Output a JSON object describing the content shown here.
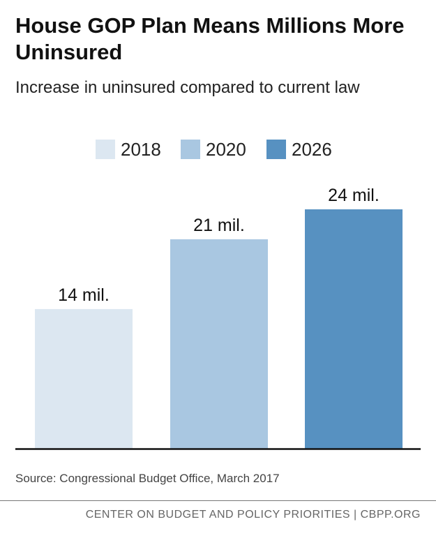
{
  "chart_data": {
    "type": "bar",
    "title": "House GOP Plan Means Millions More Uninsured",
    "subtitle": "Increase in uninsured compared to current law",
    "categories": [
      "2018",
      "2020",
      "2026"
    ],
    "values": [
      14,
      21,
      24
    ],
    "data_labels": [
      "14 mil.",
      "21 mil.",
      "24 mil."
    ],
    "units": "millions",
    "ylim": [
      0,
      24
    ],
    "xlabel": "",
    "ylabel": "",
    "grid": false,
    "legend": {
      "position": "top-center",
      "entries": [
        "2018",
        "2020",
        "2026"
      ]
    },
    "colors": [
      "#dce7f1",
      "#a9c7e1",
      "#5791c1"
    ],
    "axis_color": "#111111"
  },
  "source": "Source: Congressional Budget Office, March 2017",
  "footer": "CENTER ON BUDGET AND POLICY PRIORITIES | CBPP.ORG"
}
